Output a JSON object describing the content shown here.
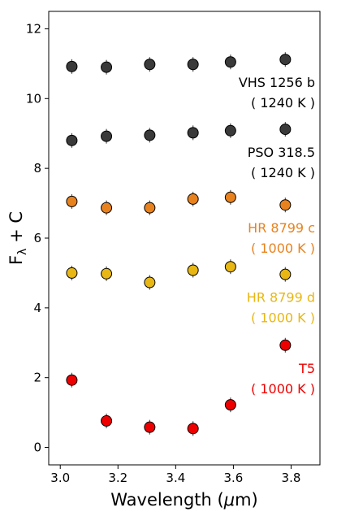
{
  "chart_data": {
    "type": "scatter",
    "title": "",
    "xlabel": "Wavelength (μm)",
    "ylabel": "Fλ + C",
    "xlim": [
      2.96,
      3.9
    ],
    "ylim": [
      -0.5,
      12.5
    ],
    "xticks": [
      3.0,
      3.2,
      3.4,
      3.6,
      3.8
    ],
    "xtick_labels": [
      "3.0",
      "3.2",
      "3.4",
      "3.6",
      "3.8"
    ],
    "yticks": [
      0,
      2,
      4,
      6,
      8,
      10,
      12
    ],
    "ytick_labels": [
      "0",
      "2",
      "4",
      "6",
      "8",
      "10",
      "12"
    ],
    "grid": false,
    "legend": "none",
    "x": [
      3.04,
      3.16,
      3.31,
      3.46,
      3.59,
      3.78
    ],
    "series": [
      {
        "color": "#3a3a3a",
        "values": [
          10.92,
          10.9,
          10.98,
          10.98,
          11.05,
          11.12
        ],
        "annotation": [
          "VHS 1256 b",
          "( 1240 K )"
        ]
      },
      {
        "color": "#3a3a3a",
        "values": [
          8.8,
          8.92,
          8.95,
          9.02,
          9.08,
          9.12
        ],
        "annotation": [
          "PSO 318.5",
          "( 1240 K )"
        ]
      },
      {
        "color": "#e8821e",
        "values": [
          7.05,
          6.87,
          6.87,
          7.12,
          7.17,
          6.95
        ],
        "annotation": [
          "HR 8799 c",
          "( 1000 K )"
        ]
      },
      {
        "color": "#e8b714",
        "values": [
          5.0,
          4.98,
          4.73,
          5.08,
          5.18,
          4.96
        ],
        "annotation": [
          "HR 8799 d",
          "( 1000 K )"
        ]
      },
      {
        "color": "#ee0000",
        "values": [
          1.93,
          0.76,
          0.58,
          0.54,
          1.22,
          2.93
        ],
        "annotation": [
          "T5",
          "( 1000 K )"
        ]
      }
    ]
  }
}
